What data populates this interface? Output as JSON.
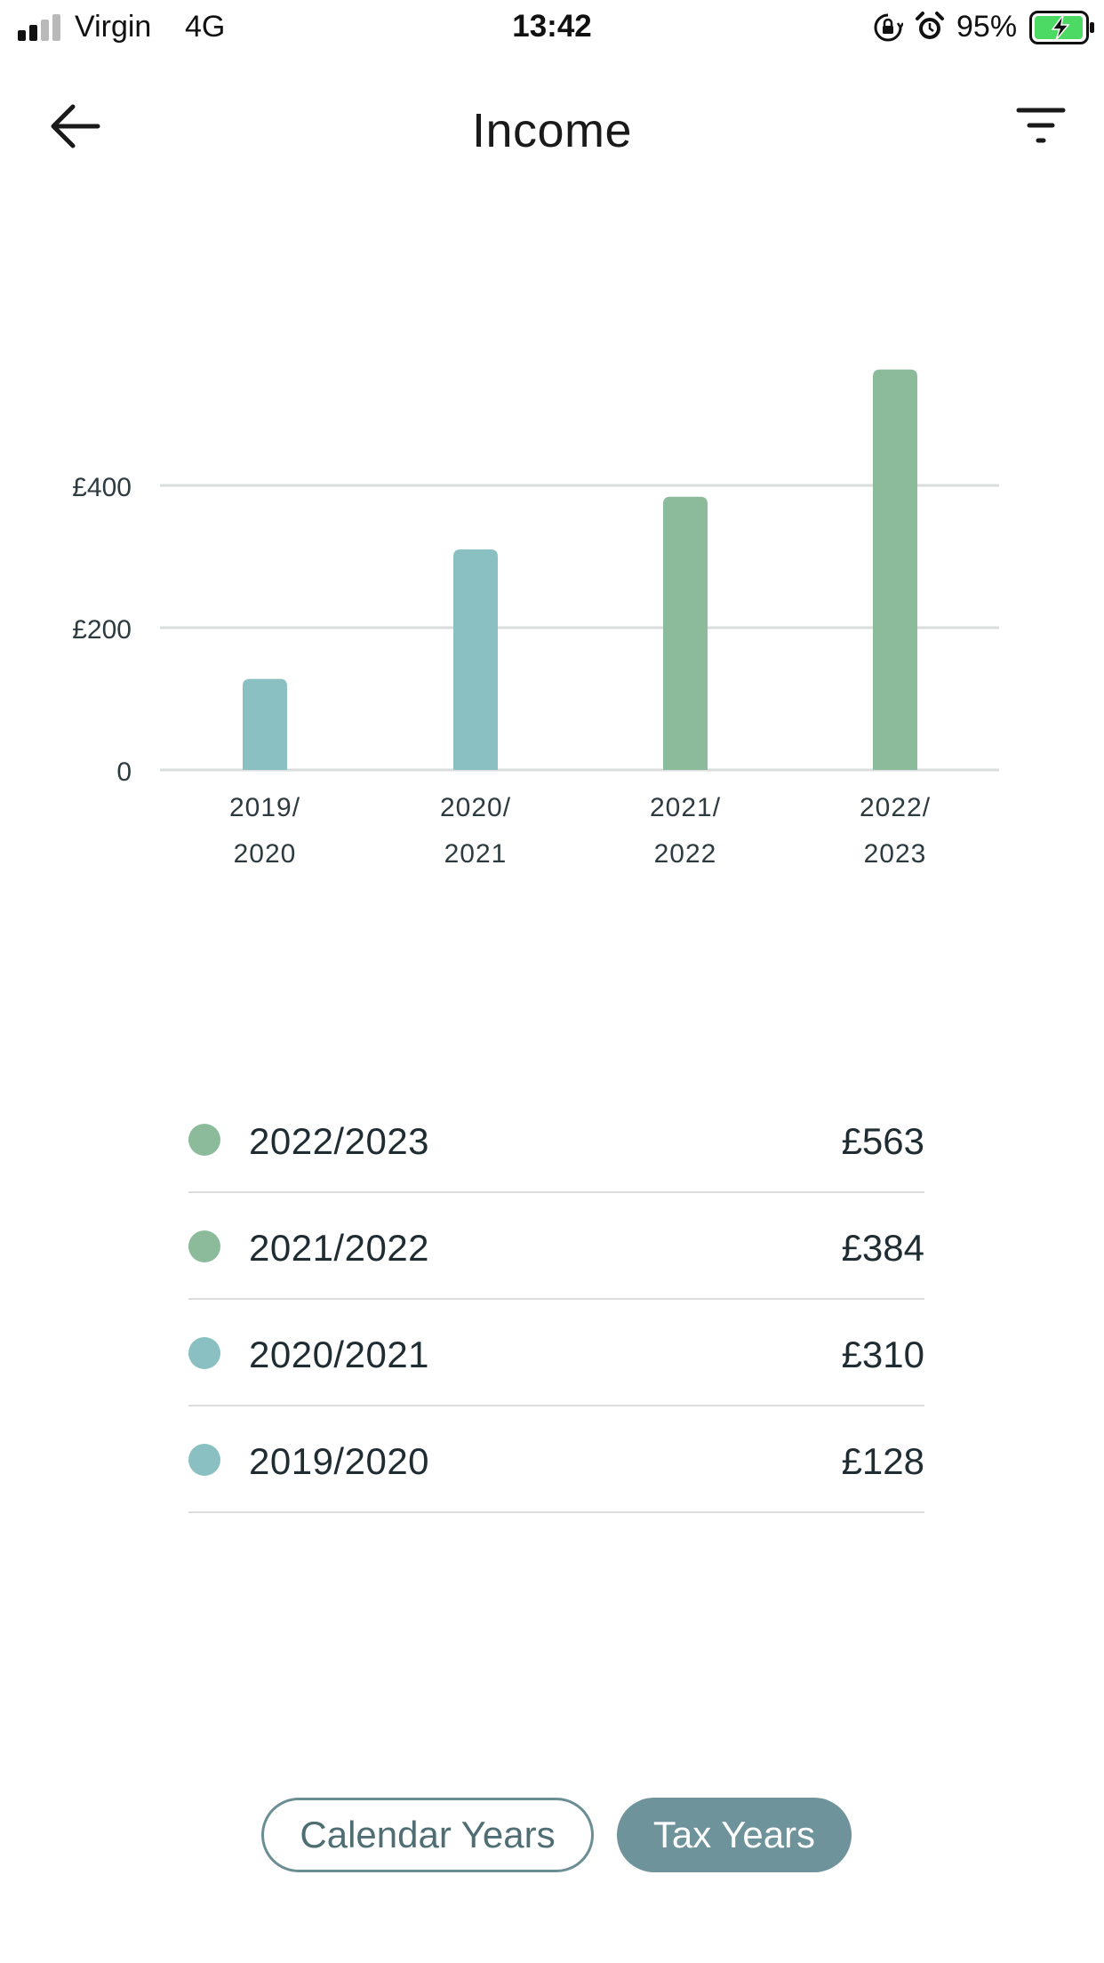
{
  "status_bar": {
    "carrier": "Virgin",
    "network": "4G",
    "time": "13:42",
    "battery": "95%",
    "icons": [
      "signal-icon",
      "orientation-lock-icon",
      "alarm-icon",
      "battery-charging-icon"
    ]
  },
  "header": {
    "title": "Income",
    "back_icon": "arrow-left-icon",
    "filter_icon": "filter-icon"
  },
  "colors": {
    "teal": "#8ac0c2",
    "green": "#8cbb9b",
    "grid": "#d9dddd",
    "active_toggle": "#6f939a"
  },
  "chart_data": {
    "type": "bar",
    "categories": [
      [
        "2019/",
        "2020"
      ],
      [
        "2020/",
        "2021"
      ],
      [
        "2021/",
        "2022"
      ],
      [
        "2022/",
        "2023"
      ]
    ],
    "values": [
      128,
      310,
      384,
      563
    ],
    "bar_colors": [
      "#8ac0c2",
      "#8ac0c2",
      "#8cbb9b",
      "#8cbb9b"
    ],
    "yticks": [
      0,
      200,
      400
    ],
    "ytick_labels": [
      "0",
      "£200",
      "£400"
    ],
    "ylim": [
      0,
      600
    ],
    "grid": true
  },
  "breakdown": [
    {
      "period": "2022/2023",
      "amount": "£563",
      "color": "#8cbb9b"
    },
    {
      "period": "2021/2022",
      "amount": "£384",
      "color": "#8cbb9b"
    },
    {
      "period": "2020/2021",
      "amount": "£310",
      "color": "#8ac0c2"
    },
    {
      "period": "2019/2020",
      "amount": "£128",
      "color": "#8ac0c2"
    }
  ],
  "toggle": {
    "calendar_label": "Calendar Years",
    "tax_label": "Tax Years",
    "selected": "Tax Years"
  }
}
